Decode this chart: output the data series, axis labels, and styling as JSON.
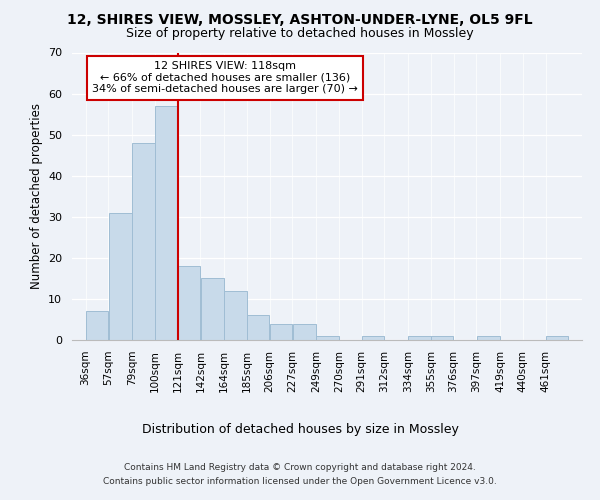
{
  "title1": "12, SHIRES VIEW, MOSSLEY, ASHTON-UNDER-LYNE, OL5 9FL",
  "title2": "Size of property relative to detached houses in Mossley",
  "xlabel": "Distribution of detached houses by size in Mossley",
  "ylabel": "Number of detached properties",
  "footer1": "Contains HM Land Registry data © Crown copyright and database right 2024.",
  "footer2": "Contains public sector information licensed under the Open Government Licence v3.0.",
  "annotation_line1": "12 SHIRES VIEW: 118sqm",
  "annotation_line2": "← 66% of detached houses are smaller (136)",
  "annotation_line3": "34% of semi-detached houses are larger (70) →",
  "bar_color": "#c8daea",
  "bar_edge_color": "#a0bdd4",
  "vline_color": "#cc0000",
  "bins": [
    36,
    57,
    79,
    100,
    121,
    142,
    164,
    185,
    206,
    227,
    249,
    270,
    291,
    312,
    334,
    355,
    376,
    397,
    419,
    440,
    461
  ],
  "bin_labels": [
    "36sqm",
    "57sqm",
    "79sqm",
    "100sqm",
    "121sqm",
    "142sqm",
    "164sqm",
    "185sqm",
    "206sqm",
    "227sqm",
    "249sqm",
    "270sqm",
    "291sqm",
    "312sqm",
    "334sqm",
    "355sqm",
    "376sqm",
    "397sqm",
    "419sqm",
    "440sqm",
    "461sqm"
  ],
  "values": [
    7,
    31,
    48,
    57,
    18,
    15,
    12,
    6,
    4,
    4,
    1,
    0,
    1,
    0,
    1,
    1,
    0,
    1,
    0,
    0,
    1
  ],
  "ylim": [
    0,
    70
  ],
  "yticks": [
    0,
    10,
    20,
    30,
    40,
    50,
    60,
    70
  ],
  "background_color": "#eef2f8",
  "title_fontsize": 10,
  "subtitle_fontsize": 9,
  "ylabel_fontsize": 8.5,
  "xlabel_fontsize": 9,
  "tick_fontsize": 7.5,
  "annotation_box_facecolor": "#ffffff",
  "annotation_box_edgecolor": "#cc0000",
  "annotation_fontsize": 8,
  "footer_fontsize": 6.5,
  "grid_color": "#ffffff"
}
